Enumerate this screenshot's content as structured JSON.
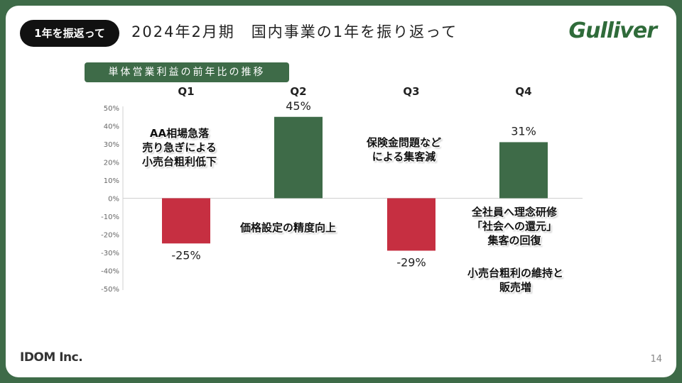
{
  "header": {
    "tag": "1年を振返って",
    "title": "2024年2月期　国内事業の1年を振り返って",
    "logo": "Gulliver"
  },
  "subheading": "単体営業利益の前年比の推移",
  "colors": {
    "positive": "#3e6b48",
    "negative": "#c62f41",
    "frame": "#3e6b48"
  },
  "chart_data": {
    "type": "bar",
    "categories": [
      "Q1",
      "Q2",
      "Q3",
      "Q4"
    ],
    "values": [
      -25,
      45,
      -29,
      31
    ],
    "data_labels": [
      "-25%",
      "45%",
      "-29%",
      "31%"
    ],
    "yticks": [
      "50%",
      "40%",
      "30%",
      "20%",
      "10%",
      "0%",
      "-10%",
      "-20%",
      "-30%",
      "-40%",
      "-50%"
    ],
    "ylim": [
      -50,
      50
    ],
    "grid": false
  },
  "annotations": {
    "q1": [
      "AA相場急落",
      "売り急ぎによる",
      "小売台粗利低下"
    ],
    "q2": [
      "価格設定の精度向上"
    ],
    "q3": [
      "保険金問題など",
      "による集客減"
    ],
    "q4a": [
      "全社員へ理念研修",
      "「社会への還元」",
      "集客の回復"
    ],
    "q4b": [
      "小売台粗利の維持と",
      "販売増"
    ]
  },
  "footer": {
    "company": "IDOM Inc.",
    "page": "14"
  }
}
